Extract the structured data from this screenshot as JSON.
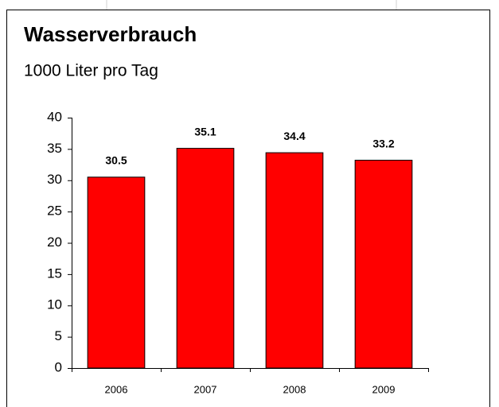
{
  "chart_data": {
    "type": "bar",
    "title": "Wasserverbrauch",
    "subtitle": "1000 Liter pro Tag",
    "categories": [
      "2006",
      "2007",
      "2008",
      "2009"
    ],
    "values": [
      30.5,
      35.1,
      34.4,
      33.2
    ],
    "color": "#ff0000",
    "ylim": [
      0,
      40
    ],
    "yticks": [
      0,
      5,
      10,
      15,
      20,
      25,
      30,
      35,
      40
    ],
    "grid": false
  }
}
